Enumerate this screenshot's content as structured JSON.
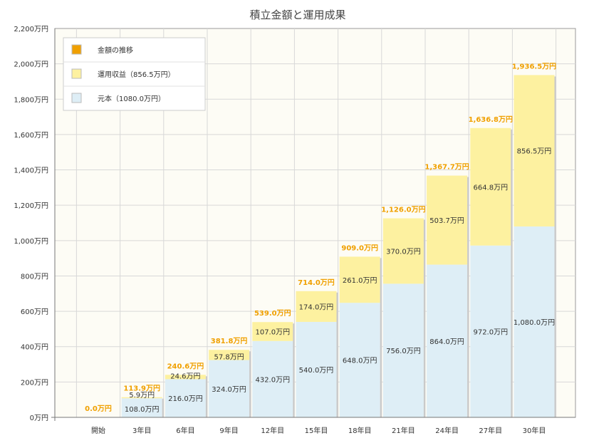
{
  "chart_data": {
    "type": "bar",
    "stacked": true,
    "title": "積立金額と運用成果",
    "categories": [
      "開始",
      "3年目",
      "6年目",
      "9年目",
      "12年目",
      "15年目",
      "18年目",
      "21年目",
      "24年目",
      "27年目",
      "30年目"
    ],
    "y_ticks": [
      "0万円",
      "200万円",
      "400万円",
      "600万円",
      "800万円",
      "1,000万円",
      "1,200万円",
      "1,400万円",
      "1,600万円",
      "1,800万円",
      "2,000万円",
      "2,200万円"
    ],
    "ylim": [
      0,
      2200
    ],
    "grid": true,
    "legend_position": "top-left",
    "legend": [
      {
        "label": "金額の推移",
        "color": "#f0a000"
      },
      {
        "label": "運用収益（856.5万円）",
        "color": "#fdf1a0"
      },
      {
        "label": "元本（1080.0万円）",
        "color": "#deeef6"
      }
    ],
    "series": [
      {
        "name": "元本（1080.0万円）",
        "color": "#deeef6",
        "values": [
          0,
          108.0,
          216.0,
          324.0,
          432.0,
          540.0,
          648.0,
          756.0,
          864.0,
          972.0,
          1080.0
        ],
        "labels": [
          "",
          "108.0万円",
          "216.0万円",
          "324.0万円",
          "432.0万円",
          "540.0万円",
          "648.0万円",
          "756.0万円",
          "864.0万円",
          "972.0万円",
          "1,080.0万円"
        ]
      },
      {
        "name": "運用収益（856.5万円）",
        "color": "#fdf1a0",
        "values": [
          0,
          5.9,
          24.6,
          57.8,
          107.0,
          174.0,
          261.0,
          370.0,
          503.7,
          664.8,
          856.5
        ],
        "labels": [
          "",
          "5.9万円",
          "24.6万円",
          "57.8万円",
          "107.0万円",
          "174.0万円",
          "261.0万円",
          "370.0万円",
          "503.7万円",
          "664.8万円",
          "856.5万円"
        ]
      }
    ],
    "totals": [
      0,
      113.9,
      240.6,
      381.8,
      539.0,
      714.0,
      909.0,
      1126.0,
      1367.7,
      1636.8,
      1936.5
    ],
    "total_labels": [
      "0.0万円",
      "113.9万円",
      "240.6万円",
      "381.8万円",
      "539.0万円",
      "714.0万円",
      "909.0万円",
      "1,126.0万円",
      "1,367.7万円",
      "1,636.8万円",
      "1,936.5万円"
    ]
  }
}
